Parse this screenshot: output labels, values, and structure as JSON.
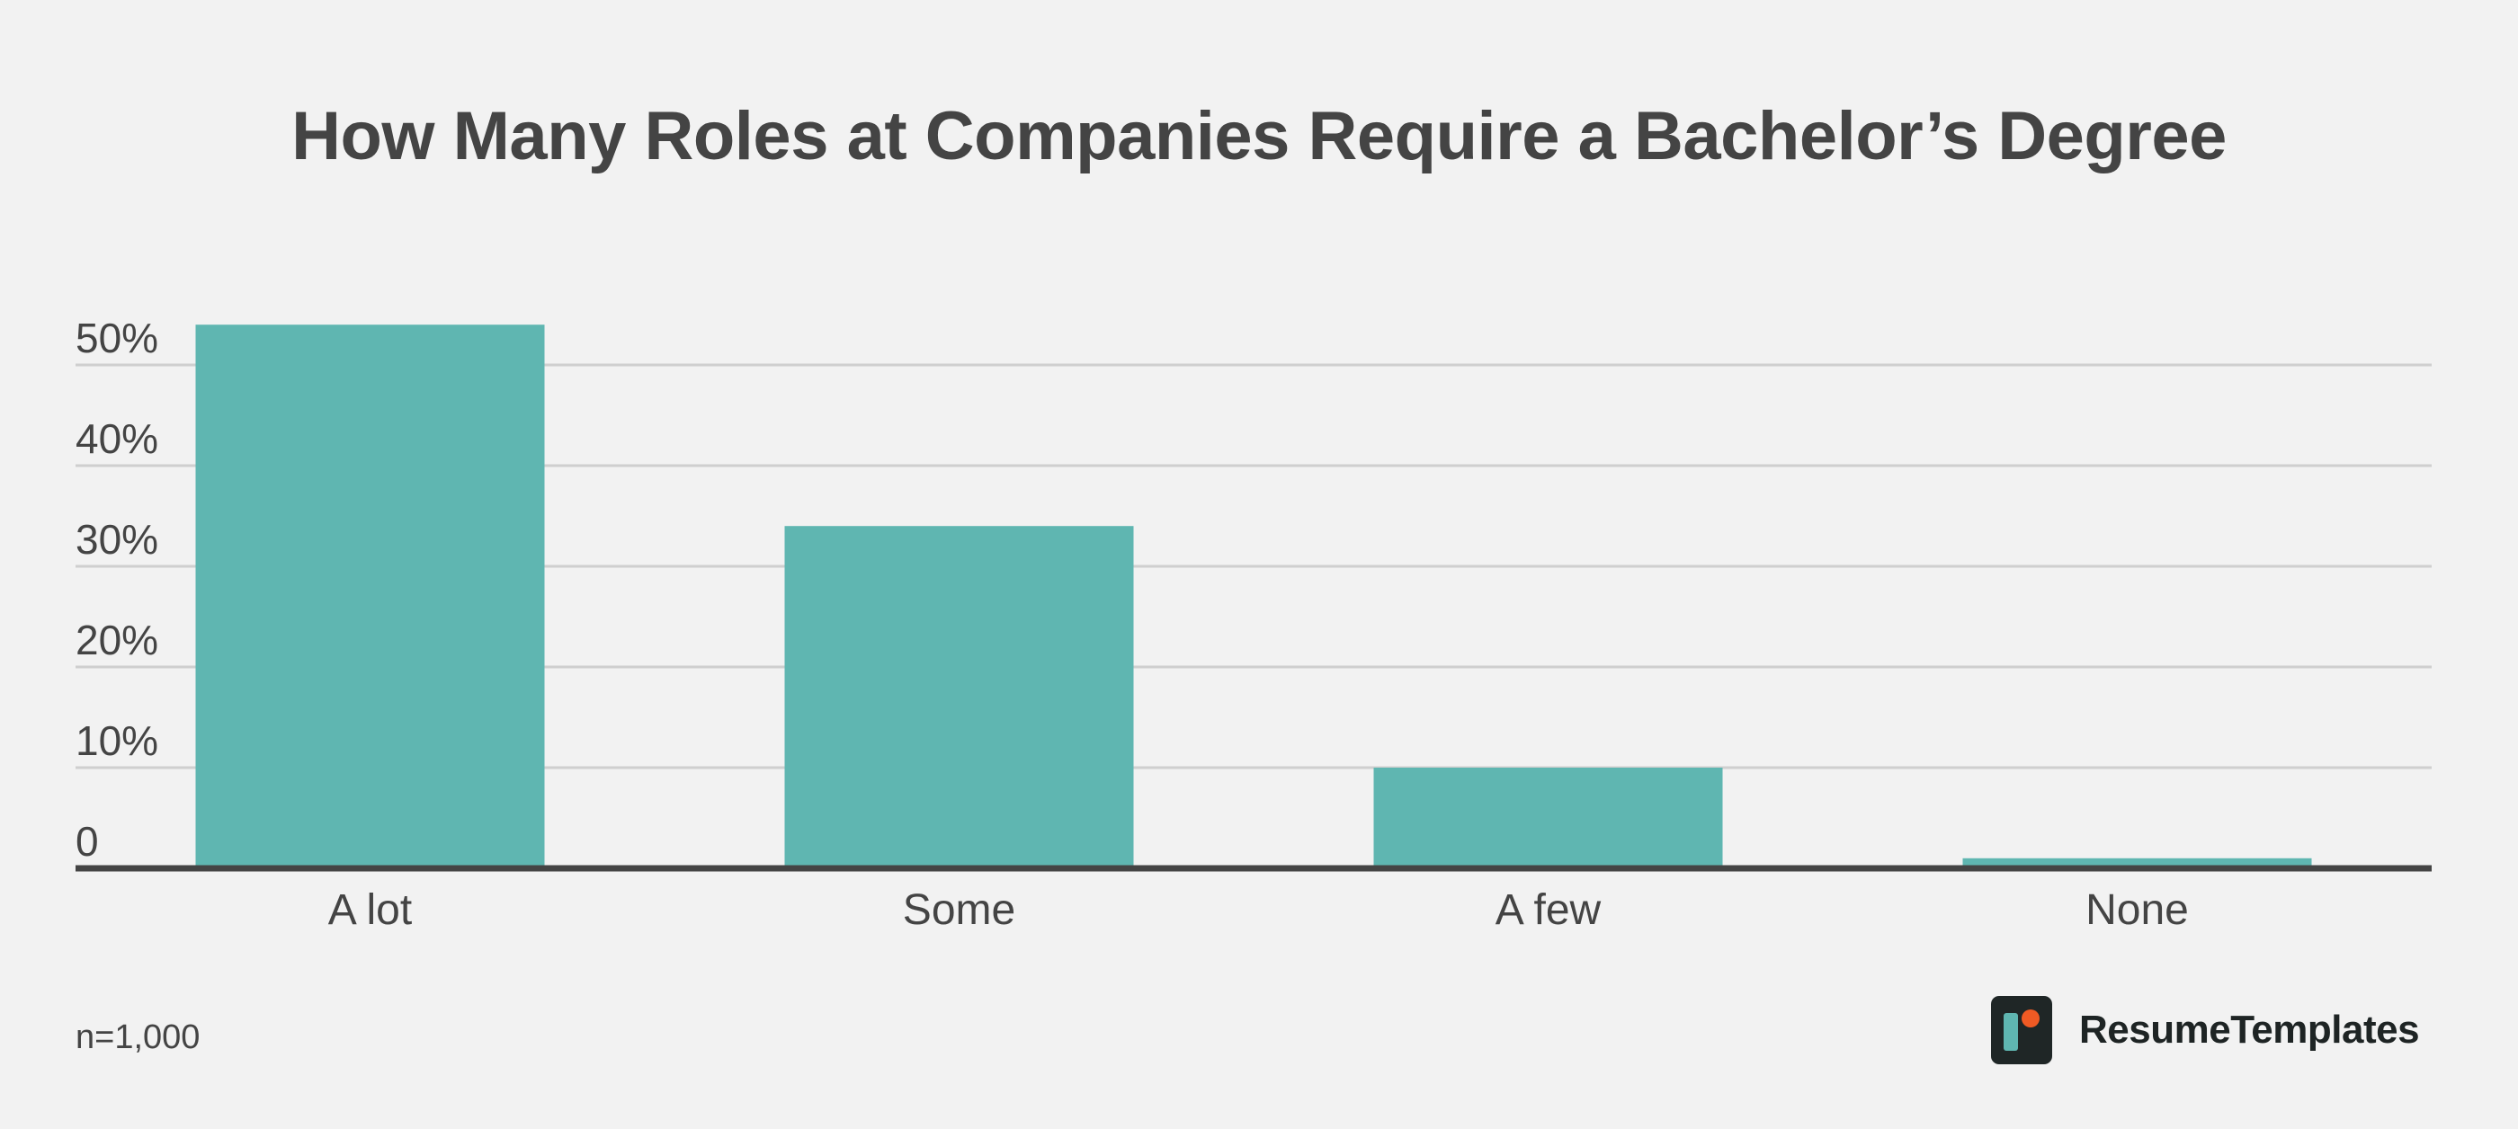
{
  "chart_data": {
    "type": "bar",
    "title": "How Many Roles at Companies Require a Bachelor’s Degree",
    "categories": [
      "A lot",
      "Some",
      "A few",
      "None"
    ],
    "values": [
      54,
      34,
      10,
      1
    ],
    "unit": "%",
    "ylim": [
      0,
      50
    ],
    "yticks": [
      0,
      10,
      20,
      30,
      40,
      50
    ],
    "ytick_labels": [
      "0",
      "10%",
      "20%",
      "30%",
      "40%",
      "50%"
    ],
    "grid": true,
    "colors": {
      "bar": "#5fb6b1",
      "grid": "#cfcfcf",
      "axis": "#444444",
      "text": "#444444",
      "background": "#f2f2f2"
    }
  },
  "footnote": "n=1,000",
  "brand": {
    "name": "ResumeTemplates",
    "icon": "resume-templates-logo-icon",
    "logo_colors": {
      "tile": "#1f2626",
      "bar": "#5fb6b1",
      "dot": "#ef5a24"
    }
  }
}
